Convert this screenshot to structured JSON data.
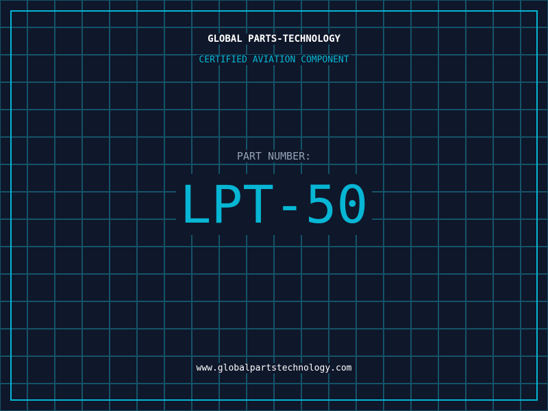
{
  "header": {
    "company": "GLOBAL PARTS-TECHNOLOGY",
    "subtitle": "CERTIFIED AVIATION COMPONENT"
  },
  "main": {
    "label": "PART NUMBER:",
    "part_number": "LPT-50"
  },
  "footer": {
    "url": "www.globalpartstechnology.com"
  },
  "colors": {
    "background": "#0f172a",
    "accent": "#06b6d4",
    "grid": "#155e75",
    "label": "#94a3b8"
  }
}
